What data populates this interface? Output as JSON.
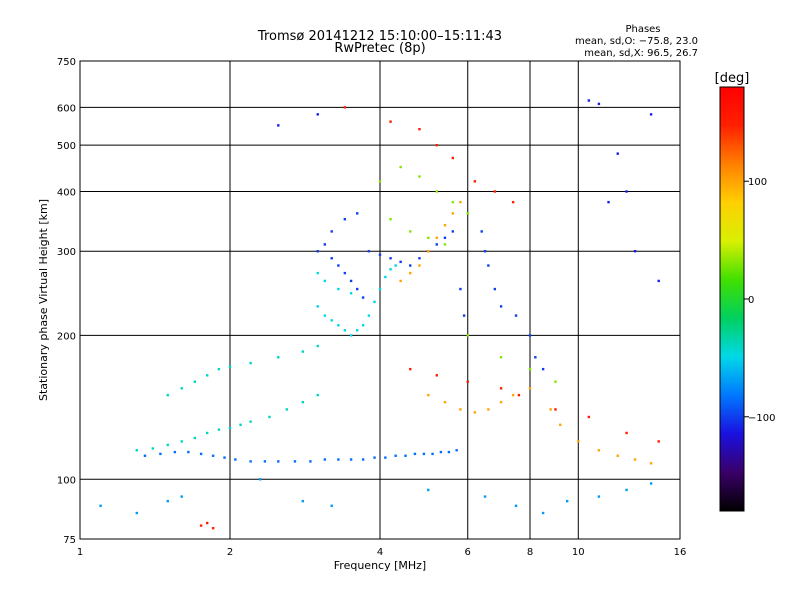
{
  "chart_data": {
    "type": "scatter",
    "title_line1": "Tromsø 20141212 15:10:00–15:11:43",
    "title_line2": "RwPretec (8p)",
    "stats_title": "Phases",
    "stats_line1": "mean, sd,O: −75.8, 23.0",
    "stats_line2": "mean, sd,X:  96.5, 26.7",
    "xlabel": "Frequency [MHz]",
    "ylabel": "Stationary phase Virtual Height [km]",
    "x_scale": "log",
    "y_scale": "log",
    "xlim": [
      1,
      16
    ],
    "ylim": [
      75,
      750
    ],
    "x_ticks": [
      1,
      2,
      4,
      6,
      8,
      10,
      16
    ],
    "x_tick_labels": [
      "1",
      "2",
      "4",
      "6",
      "8",
      "10",
      "16"
    ],
    "y_ticks": [
      75,
      100,
      200,
      300,
      400,
      500,
      600,
      750
    ],
    "y_tick_labels": [
      "75",
      "100",
      "200",
      "300",
      "400",
      "500",
      "600",
      "750"
    ],
    "grid": true,
    "colorbar": {
      "label": "[deg]",
      "range": [
        -180,
        180
      ],
      "ticks": [
        100,
        0,
        -100
      ],
      "tick_labels": [
        "100",
        "0",
        "−100"
      ],
      "colors": [
        "#000000",
        "#3a0068",
        "#1a10e0",
        "#0078ff",
        "#00d8e8",
        "#00d060",
        "#40e000",
        "#d8f000",
        "#ffd000",
        "#ff8000",
        "#ff2000",
        "#ff0000"
      ]
    },
    "series": [
      {
        "color_group": "low_band_O",
        "phase_deg": -85,
        "points": [
          [
            1.35,
            112
          ],
          [
            1.45,
            113
          ],
          [
            1.55,
            114
          ],
          [
            1.65,
            114
          ],
          [
            1.75,
            113
          ],
          [
            1.85,
            112
          ],
          [
            1.95,
            111
          ],
          [
            2.05,
            110
          ],
          [
            2.2,
            109
          ],
          [
            2.35,
            109
          ],
          [
            2.5,
            109
          ],
          [
            2.7,
            109
          ],
          [
            2.9,
            109
          ],
          [
            3.1,
            110
          ],
          [
            3.3,
            110
          ],
          [
            3.5,
            110
          ],
          [
            3.7,
            110
          ],
          [
            3.9,
            111
          ],
          [
            4.1,
            111
          ],
          [
            4.3,
            112
          ],
          [
            4.5,
            112
          ],
          [
            4.7,
            113
          ],
          [
            4.9,
            113
          ],
          [
            5.1,
            113
          ],
          [
            5.3,
            114
          ],
          [
            5.5,
            114
          ],
          [
            5.7,
            115
          ]
        ]
      },
      {
        "color_group": "cyan_band",
        "phase_deg": -40,
        "points": [
          [
            1.3,
            115
          ],
          [
            1.4,
            116
          ],
          [
            1.5,
            118
          ],
          [
            1.6,
            120
          ],
          [
            1.7,
            122
          ],
          [
            1.8,
            125
          ],
          [
            1.9,
            127
          ],
          [
            2.0,
            128
          ],
          [
            2.1,
            130
          ],
          [
            2.2,
            132
          ],
          [
            2.4,
            135
          ],
          [
            2.6,
            140
          ],
          [
            2.8,
            145
          ],
          [
            3.0,
            150
          ],
          [
            1.5,
            150
          ],
          [
            1.6,
            155
          ],
          [
            1.7,
            160
          ],
          [
            1.8,
            165
          ],
          [
            1.9,
            170
          ],
          [
            2.0,
            172
          ],
          [
            2.2,
            175
          ],
          [
            2.5,
            180
          ],
          [
            2.8,
            185
          ],
          [
            3.0,
            190
          ]
        ]
      },
      {
        "color_group": "F_layer_blue",
        "phase_deg": -100,
        "points": [
          [
            3.0,
            300
          ],
          [
            3.1,
            310
          ],
          [
            3.2,
            290
          ],
          [
            3.3,
            280
          ],
          [
            3.4,
            270
          ],
          [
            3.5,
            260
          ],
          [
            3.6,
            250
          ],
          [
            3.7,
            240
          ],
          [
            3.2,
            330
          ],
          [
            3.4,
            350
          ],
          [
            3.6,
            360
          ],
          [
            3.8,
            300
          ],
          [
            4.0,
            295
          ],
          [
            4.2,
            290
          ],
          [
            4.4,
            285
          ],
          [
            4.6,
            280
          ],
          [
            4.8,
            290
          ],
          [
            5.0,
            300
          ],
          [
            5.2,
            310
          ],
          [
            5.4,
            320
          ],
          [
            5.6,
            330
          ],
          [
            5.8,
            250
          ],
          [
            5.9,
            220
          ],
          [
            6.4,
            330
          ],
          [
            6.5,
            300
          ],
          [
            6.6,
            280
          ],
          [
            6.8,
            250
          ],
          [
            7.0,
            230
          ],
          [
            7.5,
            220
          ],
          [
            8.0,
            200
          ],
          [
            8.2,
            180
          ],
          [
            8.5,
            170
          ]
        ]
      },
      {
        "color_group": "F_layer_cyan",
        "phase_deg": -50,
        "points": [
          [
            3.0,
            230
          ],
          [
            3.1,
            220
          ],
          [
            3.2,
            215
          ],
          [
            3.3,
            210
          ],
          [
            3.4,
            205
          ],
          [
            3.5,
            200
          ],
          [
            3.6,
            205
          ],
          [
            3.7,
            210
          ],
          [
            3.8,
            220
          ],
          [
            3.9,
            235
          ],
          [
            4.0,
            250
          ],
          [
            4.1,
            265
          ],
          [
            4.2,
            275
          ],
          [
            4.3,
            280
          ],
          [
            3.0,
            270
          ],
          [
            3.1,
            260
          ],
          [
            3.3,
            250
          ],
          [
            3.5,
            245
          ]
        ]
      },
      {
        "color_group": "X_mode_yellow",
        "phase_deg": 100,
        "points": [
          [
            4.4,
            260
          ],
          [
            4.6,
            270
          ],
          [
            4.8,
            280
          ],
          [
            5.0,
            300
          ],
          [
            5.2,
            320
          ],
          [
            5.4,
            340
          ],
          [
            5.6,
            360
          ],
          [
            5.8,
            380
          ],
          [
            5.0,
            150
          ],
          [
            5.4,
            145
          ],
          [
            5.8,
            140
          ],
          [
            6.2,
            138
          ],
          [
            6.6,
            140
          ],
          [
            7.0,
            145
          ],
          [
            7.4,
            150
          ],
          [
            8.0,
            155
          ],
          [
            8.8,
            140
          ],
          [
            9.2,
            130
          ],
          [
            10.0,
            120
          ],
          [
            11.0,
            115
          ],
          [
            12.0,
            112
          ],
          [
            13.0,
            110
          ],
          [
            14.0,
            108
          ]
        ]
      },
      {
        "color_group": "orange_red_scattered",
        "phase_deg": 150,
        "points": [
          [
            1.75,
            80
          ],
          [
            1.8,
            81
          ],
          [
            1.85,
            79
          ],
          [
            3.4,
            600
          ],
          [
            4.2,
            560
          ],
          [
            4.8,
            540
          ],
          [
            5.2,
            500
          ],
          [
            5.6,
            470
          ],
          [
            6.2,
            420
          ],
          [
            6.8,
            400
          ],
          [
            7.4,
            380
          ],
          [
            4.6,
            170
          ],
          [
            5.2,
            165
          ],
          [
            6.0,
            160
          ],
          [
            7.0,
            155
          ],
          [
            7.6,
            150
          ],
          [
            9.0,
            140
          ],
          [
            10.5,
            135
          ],
          [
            12.5,
            125
          ],
          [
            14.5,
            120
          ]
        ]
      },
      {
        "color_group": "green_scattered",
        "phase_deg": 30,
        "points": [
          [
            4.0,
            420
          ],
          [
            4.4,
            450
          ],
          [
            4.8,
            430
          ],
          [
            5.2,
            400
          ],
          [
            5.6,
            380
          ],
          [
            6.0,
            360
          ],
          [
            4.2,
            350
          ],
          [
            4.6,
            330
          ],
          [
            5.0,
            320
          ],
          [
            5.4,
            310
          ],
          [
            6.0,
            200
          ],
          [
            7.0,
            180
          ],
          [
            8.0,
            170
          ],
          [
            9.0,
            160
          ]
        ]
      },
      {
        "color_group": "sparse_high",
        "phase_deg": -110,
        "points": [
          [
            2.5,
            550
          ],
          [
            3.0,
            580
          ],
          [
            10.5,
            620
          ],
          [
            11.0,
            610
          ],
          [
            12.0,
            480
          ],
          [
            12.5,
            400
          ],
          [
            11.5,
            380
          ],
          [
            14.0,
            580
          ],
          [
            13.0,
            300
          ],
          [
            14.5,
            260
          ]
        ]
      },
      {
        "color_group": "sparse_low",
        "phase_deg": -70,
        "points": [
          [
            1.1,
            88
          ],
          [
            1.3,
            85
          ],
          [
            1.5,
            90
          ],
          [
            1.6,
            92
          ],
          [
            2.3,
            100
          ],
          [
            2.8,
            90
          ],
          [
            3.2,
            88
          ],
          [
            5.0,
            95
          ],
          [
            6.5,
            92
          ],
          [
            7.5,
            88
          ],
          [
            8.5,
            85
          ],
          [
            9.5,
            90
          ],
          [
            11.0,
            92
          ],
          [
            12.5,
            95
          ],
          [
            14.0,
            98
          ]
        ]
      }
    ]
  }
}
